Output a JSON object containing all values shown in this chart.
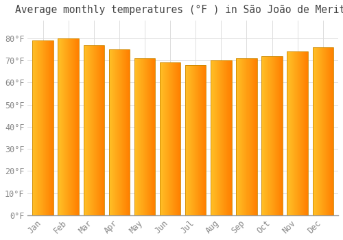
{
  "title": "Average monthly temperatures (°F ) in São João de Meriti",
  "months": [
    "Jan",
    "Feb",
    "Mar",
    "Apr",
    "May",
    "Jun",
    "Jul",
    "Aug",
    "Sep",
    "Oct",
    "Nov",
    "Dec"
  ],
  "values": [
    79,
    80,
    77,
    75,
    71,
    69,
    68,
    70,
    71,
    72,
    74,
    76
  ],
  "bar_color_left": "#FFD040",
  "bar_color_right": "#FFA000",
  "bar_edge_color": "#CC8800",
  "background_color": "#FFFFFF",
  "grid_color": "#DDDDDD",
  "ylim": [
    0,
    88
  ],
  "yticks": [
    0,
    10,
    20,
    30,
    40,
    50,
    60,
    70,
    80
  ],
  "ytick_labels": [
    "0°F",
    "10°F",
    "20°F",
    "30°F",
    "40°F",
    "50°F",
    "60°F",
    "70°F",
    "80°F"
  ],
  "title_fontsize": 10.5,
  "tick_fontsize": 8.5
}
